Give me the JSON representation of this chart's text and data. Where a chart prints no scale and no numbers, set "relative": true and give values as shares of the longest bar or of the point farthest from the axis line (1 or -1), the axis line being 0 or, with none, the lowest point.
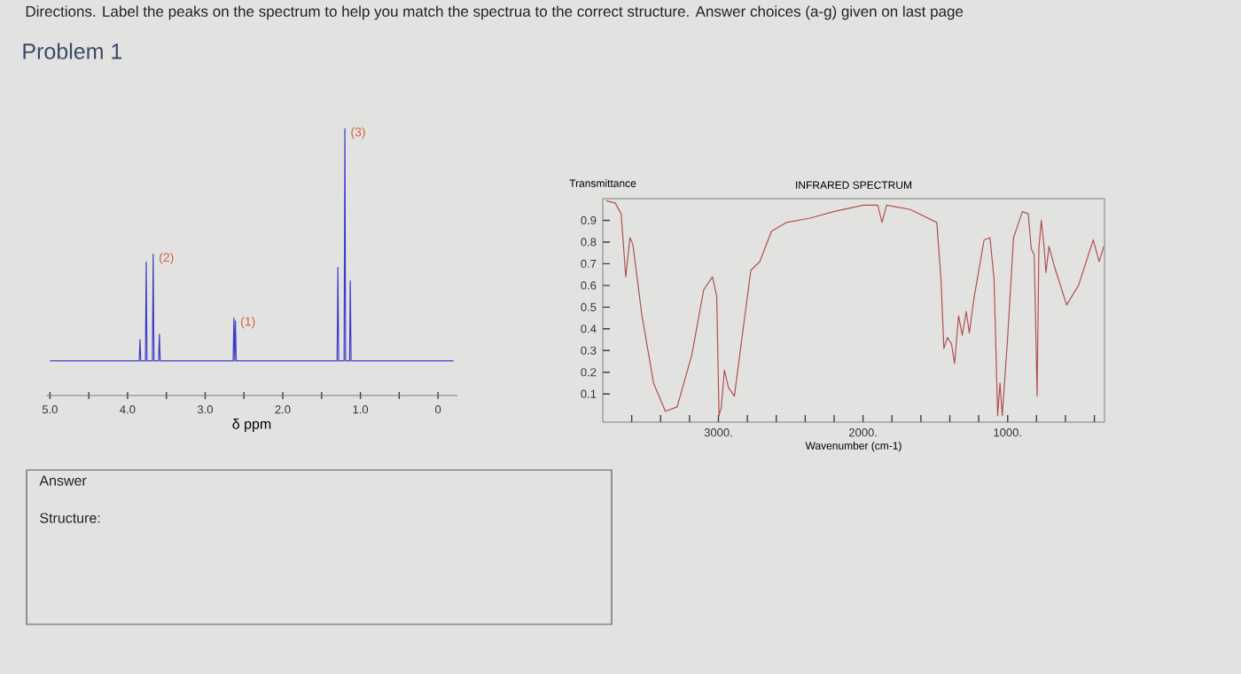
{
  "chart_data": [
    {
      "type": "line",
      "relative": true,
      "xlabel": "δ ppm",
      "color": "#3c3cc8",
      "annotations": [
        "Directions. Label the peaks on the spectrum to help you match the spectrua to the correct structure. Answer choices (a-g) given on last page",
        "Problem 1",
        "Answer",
        "Structure:",
        {
          "text": "(1)",
          "x": 2.62,
          "y": 0.29
        },
        {
          "text": "(2)",
          "x": 3.67,
          "y": 0.53
        },
        {
          "text": "(3)",
          "x": 1.2,
          "y": 1.0
        }
      ],
      "xlim": [
        5.05,
        -0.25
      ],
      "xticks": [
        {
          "value": 5.0,
          "label": "5.0"
        },
        {
          "value": 4.5,
          "label": null
        },
        {
          "value": 4.0,
          "label": "4.0"
        },
        {
          "value": 3.5,
          "label": null
        },
        {
          "value": 3.0,
          "label": "3.0"
        },
        {
          "value": 2.5,
          "label": null
        },
        {
          "value": 2.0,
          "label": "2.0"
        },
        {
          "value": 1.5,
          "label": null
        },
        {
          "value": 1.0,
          "label": "1.0"
        },
        {
          "value": 0.5,
          "label": null
        },
        0
      ],
      "x": [
        5.0,
        3.85,
        3.84,
        3.83,
        3.77,
        3.76,
        3.75,
        3.68,
        3.67,
        3.66,
        3.6,
        3.59,
        3.58,
        2.64,
        2.63,
        2.62,
        2.61,
        2.6,
        1.3,
        1.29,
        1.28,
        1.21,
        1.2,
        1.19,
        1.14,
        1.13,
        1.12,
        -0.2
      ],
      "values": [
        0.13,
        0.13,
        0.21,
        0.13,
        0.13,
        0.5,
        0.13,
        0.13,
        0.53,
        0.13,
        0.13,
        0.23,
        0.13,
        0.13,
        0.29,
        0.13,
        0.28,
        0.13,
        0.13,
        0.48,
        0.13,
        0.13,
        1.0,
        0.13,
        0.13,
        0.43,
        0.13,
        0.13
      ]
    },
    {
      "type": "line",
      "title": "INFRARED SPECTRUM",
      "xlabel": "Wavenumber (cm-1)",
      "ylabel": "Transmittance",
      "color": "#b05050",
      "xlim": [
        3800,
        330
      ],
      "ylim": [
        -0.03,
        1.0
      ],
      "xticks": [
        {
          "value": 3600,
          "label": null
        },
        {
          "value": 3400,
          "label": null
        },
        {
          "value": 3200,
          "label": null
        },
        {
          "value": 3000,
          "label": "3000."
        },
        {
          "value": 2800,
          "label": null
        },
        {
          "value": 2600,
          "label": null
        },
        {
          "value": 2400,
          "label": null
        },
        {
          "value": 2200,
          "label": null
        },
        {
          "value": 2000,
          "label": "2000."
        },
        {
          "value": 1800,
          "label": null
        },
        {
          "value": 1600,
          "label": null
        },
        {
          "value": 1400,
          "label": null
        },
        {
          "value": 1200,
          "label": null
        },
        {
          "value": 1000,
          "label": "1000."
        },
        {
          "value": 800,
          "label": null
        },
        {
          "value": 600,
          "label": null
        },
        {
          "value": 400,
          "label": null
        }
      ],
      "yticks": [
        0.1,
        0.2,
        0.3,
        0.4,
        0.5,
        0.6,
        0.7,
        0.8,
        0.9
      ],
      "x": [
        3776,
        3714,
        3673,
        3641,
        3612,
        3592,
        3531,
        3449,
        3367,
        3286,
        3184,
        3102,
        3041,
        3012,
        2996,
        2980,
        2959,
        2931,
        2890,
        2837,
        2776,
        2714,
        2633,
        2531,
        2367,
        2204,
        2000,
        1898,
        1869,
        1837,
        1673,
        1551,
        1490,
        1461,
        1441,
        1416,
        1388,
        1367,
        1339,
        1314,
        1286,
        1265,
        1233,
        1163,
        1122,
        1094,
        1069,
        1053,
        1037,
        1000,
        959,
        898,
        857,
        837,
        816,
        796,
        784,
        767,
        747,
        735,
        714,
        673,
        592,
        510,
        408,
        367,
        335
      ],
      "values": [
        0.99,
        0.98,
        0.93,
        0.64,
        0.82,
        0.79,
        0.47,
        0.15,
        0.02,
        0.04,
        0.28,
        0.58,
        0.64,
        0.55,
        0.0,
        0.04,
        0.21,
        0.13,
        0.09,
        0.36,
        0.67,
        0.71,
        0.85,
        0.89,
        0.91,
        0.94,
        0.97,
        0.97,
        0.89,
        0.97,
        0.95,
        0.91,
        0.89,
        0.63,
        0.31,
        0.36,
        0.33,
        0.24,
        0.46,
        0.37,
        0.48,
        0.38,
        0.54,
        0.81,
        0.82,
        0.63,
        0.0,
        0.15,
        0.0,
        0.36,
        0.82,
        0.94,
        0.93,
        0.77,
        0.74,
        0.09,
        0.77,
        0.9,
        0.77,
        0.66,
        0.78,
        0.68,
        0.51,
        0.6,
        0.81,
        0.71,
        0.78
      ]
    }
  ]
}
